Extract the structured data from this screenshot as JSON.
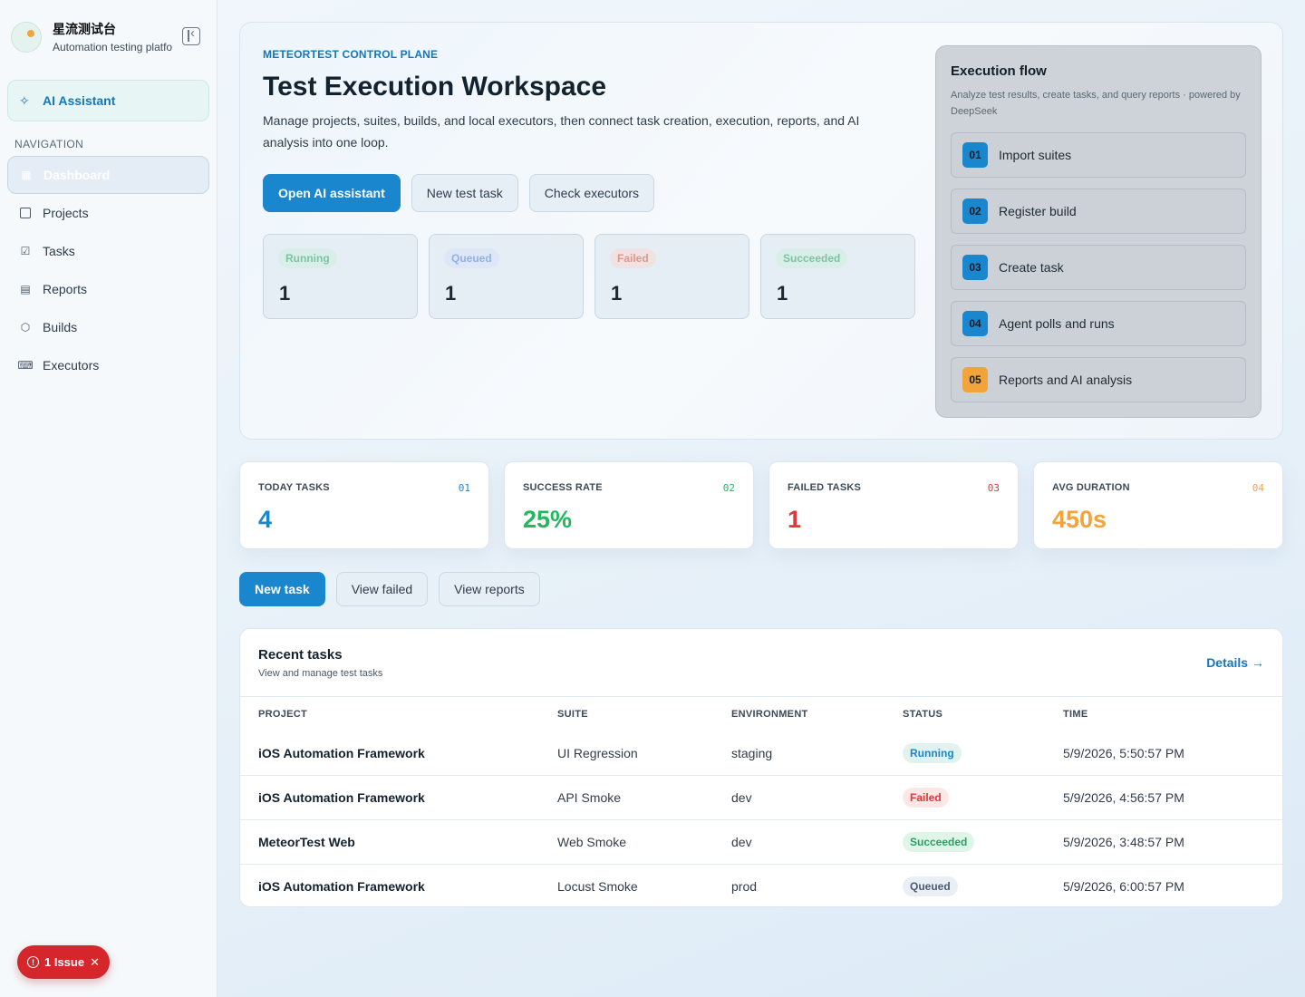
{
  "sidebar": {
    "brand_name": "星流测试台",
    "brand_sub": "Automation testing platfo",
    "ai_item": "AI Assistant",
    "nav_heading": "NAVIGATION",
    "items": [
      {
        "label": "Dashboard",
        "icon": "grid-icon",
        "active": true
      },
      {
        "label": "Projects",
        "icon": "folder-icon"
      },
      {
        "label": "Tasks",
        "icon": "checkbox-icon"
      },
      {
        "label": "Reports",
        "icon": "document-icon"
      },
      {
        "label": "Builds",
        "icon": "cube-icon"
      },
      {
        "label": "Executors",
        "icon": "terminal-icon"
      }
    ],
    "issue_label": "1 Issue"
  },
  "hero": {
    "eyebrow": "METEORTEST CONTROL PLANE",
    "title": "Test Execution Workspace",
    "description": "Manage projects, suites, builds, and local executors, then connect task creation, execution, reports, and AI analysis into one loop.",
    "actions": [
      "Open AI assistant",
      "New test task",
      "Check executors"
    ],
    "statuses": [
      {
        "label": "Running",
        "value": "1",
        "color": "#22a463",
        "bg": "#cfeede"
      },
      {
        "label": "Queued",
        "value": "1",
        "color": "#4a7fe0",
        "bg": "#d6e3fa"
      },
      {
        "label": "Failed",
        "value": "1",
        "color": "#e0503a",
        "bg": "#f9d9d3"
      },
      {
        "label": "Succeeded",
        "value": "1",
        "color": "#22a463",
        "bg": "#cfeede"
      }
    ]
  },
  "flow": {
    "title": "Execution flow",
    "subtitle": "Analyze test results, create tasks, and query reports · powered by DeepSeek",
    "steps": [
      {
        "num": "01",
        "label": "Import suites",
        "color": "#1a86cd"
      },
      {
        "num": "02",
        "label": "Register build",
        "color": "#1a86cd"
      },
      {
        "num": "03",
        "label": "Create task",
        "color": "#1a86cd"
      },
      {
        "num": "04",
        "label": "Agent polls and runs",
        "color": "#1a86cd"
      },
      {
        "num": "05",
        "label": "Reports and AI analysis",
        "color": "#f2a33a"
      }
    ]
  },
  "metrics": [
    {
      "label": "TODAY TASKS",
      "index": "01",
      "value": "4",
      "color": "#1a86cd"
    },
    {
      "label": "SUCCESS RATE",
      "index": "02",
      "value": "25%",
      "color": "#22b85f"
    },
    {
      "label": "FAILED TASKS",
      "index": "03",
      "value": "1",
      "color": "#e0383a"
    },
    {
      "label": "AVG DURATION",
      "index": "04",
      "value": "450s",
      "color": "#f2a33a"
    }
  ],
  "quick_actions": [
    "New task",
    "View failed",
    "View reports"
  ],
  "recent": {
    "title": "Recent tasks",
    "subtitle": "View and manage test tasks",
    "details": "Details →",
    "columns": [
      "PROJECT",
      "SUITE",
      "ENVIRONMENT",
      "STATUS",
      "TIME"
    ],
    "rows": [
      {
        "project": "iOS Automation Framework",
        "suite": "UI Regression",
        "env": "staging",
        "status": "Running",
        "status_color": "#1a86cd",
        "status_bg": "#e2f2ee",
        "time": "5/9/2026, 5:50:57 PM"
      },
      {
        "project": "iOS Automation Framework",
        "suite": "API Smoke",
        "env": "dev",
        "status": "Failed",
        "status_color": "#e0383a",
        "status_bg": "#fde6e6",
        "time": "5/9/2026, 4:56:57 PM"
      },
      {
        "project": "MeteorTest Web",
        "suite": "Web Smoke",
        "env": "dev",
        "status": "Succeeded",
        "status_color": "#22a463",
        "status_bg": "#e0f5e8",
        "time": "5/9/2026, 3:48:57 PM"
      },
      {
        "project": "iOS Automation Framework",
        "suite": "Locust Smoke",
        "env": "prod",
        "status": "Queued",
        "status_color": "#4a5a6e",
        "status_bg": "#eaeff5",
        "time": "5/9/2026, 6:00:57 PM"
      }
    ]
  }
}
